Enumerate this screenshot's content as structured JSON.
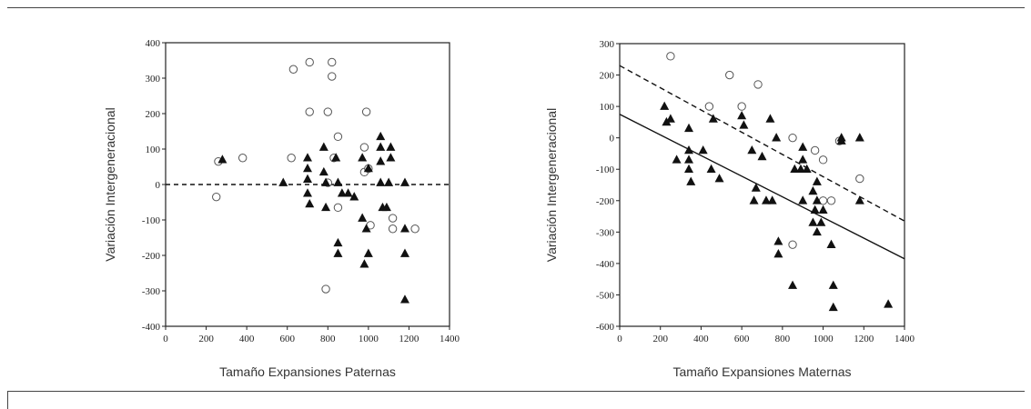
{
  "chart_data": [
    {
      "type": "scatter",
      "title": "",
      "xlabel": "Tamaño Expansiones Paternas",
      "ylabel": "Variación Intergeneracional",
      "xlim": [
        0,
        1400
      ],
      "ylim": [
        -400,
        400
      ],
      "x_ticks": [
        "0",
        "200",
        "400",
        "600",
        "800",
        "1000",
        "1200",
        "1400"
      ],
      "y_ticks": [
        "400",
        "300",
        "200",
        "100",
        "0",
        "-100",
        "-200",
        "-300",
        "-400"
      ],
      "grid": false,
      "legend": "none",
      "reference_lines": [
        {
          "style": "dashed",
          "y": 0
        }
      ],
      "series": [
        {
          "marker": "open-circle",
          "points": [
            [
              250,
              -35
            ],
            [
              260,
              65
            ],
            [
              380,
              75
            ],
            [
              620,
              75
            ],
            [
              630,
              325
            ],
            [
              710,
              345
            ],
            [
              710,
              205
            ],
            [
              800,
              205
            ],
            [
              820,
              345
            ],
            [
              820,
              305
            ],
            [
              800,
              5
            ],
            [
              830,
              75
            ],
            [
              850,
              135
            ],
            [
              850,
              -65
            ],
            [
              790,
              -295
            ],
            [
              990,
              205
            ],
            [
              980,
              105
            ],
            [
              980,
              35
            ],
            [
              1000,
              45
            ],
            [
              1010,
              -115
            ],
            [
              1120,
              -95
            ],
            [
              1120,
              -125
            ],
            [
              1230,
              -125
            ]
          ]
        },
        {
          "marker": "filled-triangle",
          "points": [
            [
              280,
              70
            ],
            [
              580,
              5
            ],
            [
              700,
              75
            ],
            [
              700,
              45
            ],
            [
              700,
              15
            ],
            [
              700,
              -25
            ],
            [
              710,
              -55
            ],
            [
              780,
              105
            ],
            [
              780,
              35
            ],
            [
              790,
              5
            ],
            [
              790,
              -65
            ],
            [
              840,
              75
            ],
            [
              850,
              5
            ],
            [
              870,
              -25
            ],
            [
              900,
              -25
            ],
            [
              930,
              -35
            ],
            [
              850,
              -165
            ],
            [
              850,
              -195
            ],
            [
              970,
              75
            ],
            [
              970,
              -95
            ],
            [
              990,
              -125
            ],
            [
              1000,
              -195
            ],
            [
              1000,
              45
            ],
            [
              1060,
              135
            ],
            [
              1060,
              105
            ],
            [
              1060,
              65
            ],
            [
              1060,
              5
            ],
            [
              1070,
              -65
            ],
            [
              1090,
              -65
            ],
            [
              1100,
              5
            ],
            [
              1110,
              105
            ],
            [
              1110,
              75
            ],
            [
              980,
              -225
            ],
            [
              1180,
              5
            ],
            [
              1180,
              -125
            ],
            [
              1180,
              -195
            ],
            [
              1180,
              -325
            ]
          ]
        }
      ]
    },
    {
      "type": "scatter",
      "title": "",
      "xlabel": "Tamaño Expansiones Maternas",
      "ylabel": "Variación Intergeneracional",
      "xlim": [
        0,
        1400
      ],
      "ylim": [
        -600,
        300
      ],
      "x_ticks": [
        "0",
        "200",
        "400",
        "600",
        "800",
        "1000",
        "1200",
        "1400"
      ],
      "y_ticks": [
        "300",
        "200",
        "100",
        "0",
        "-100",
        "-200",
        "-300",
        "-400",
        "-500",
        "-600"
      ],
      "grid": false,
      "legend": "none",
      "regression_lines": [
        {
          "style": "dashed",
          "x": [
            0,
            1400
          ],
          "y": [
            230,
            -265
          ]
        },
        {
          "style": "solid",
          "x": [
            0,
            1400
          ],
          "y": [
            75,
            -385
          ]
        }
      ],
      "series": [
        {
          "marker": "open-circle",
          "points": [
            [
              250,
              260
            ],
            [
              440,
              100
            ],
            [
              540,
              200
            ],
            [
              600,
              100
            ],
            [
              680,
              170
            ],
            [
              850,
              0
            ],
            [
              850,
              -340
            ],
            [
              960,
              -40
            ],
            [
              1000,
              -70
            ],
            [
              1000,
              -200
            ],
            [
              1040,
              -200
            ],
            [
              1080,
              -10
            ],
            [
              1180,
              -130
            ]
          ]
        },
        {
          "marker": "filled-triangle",
          "points": [
            [
              220,
              100
            ],
            [
              230,
              50
            ],
            [
              250,
              60
            ],
            [
              280,
              -70
            ],
            [
              340,
              30
            ],
            [
              340,
              -40
            ],
            [
              340,
              -70
            ],
            [
              340,
              -100
            ],
            [
              350,
              -140
            ],
            [
              410,
              -40
            ],
            [
              460,
              60
            ],
            [
              450,
              -100
            ],
            [
              490,
              -130
            ],
            [
              600,
              70
            ],
            [
              610,
              40
            ],
            [
              650,
              -40
            ],
            [
              660,
              -200
            ],
            [
              670,
              -160
            ],
            [
              700,
              -60
            ],
            [
              720,
              -200
            ],
            [
              740,
              60
            ],
            [
              750,
              -200
            ],
            [
              770,
              0
            ],
            [
              780,
              -330
            ],
            [
              780,
              -370
            ],
            [
              850,
              -470
            ],
            [
              860,
              -100
            ],
            [
              890,
              -100
            ],
            [
              900,
              -30
            ],
            [
              900,
              -70
            ],
            [
              900,
              -200
            ],
            [
              920,
              -100
            ],
            [
              950,
              -170
            ],
            [
              950,
              -270
            ],
            [
              960,
              -230
            ],
            [
              970,
              -140
            ],
            [
              970,
              -300
            ],
            [
              970,
              -200
            ],
            [
              990,
              -270
            ],
            [
              1000,
              -230
            ],
            [
              1040,
              -340
            ],
            [
              1050,
              -470
            ],
            [
              1050,
              -540
            ],
            [
              1090,
              -10
            ],
            [
              1090,
              0
            ],
            [
              1180,
              0
            ],
            [
              1180,
              -200
            ],
            [
              1320,
              -530
            ]
          ]
        }
      ]
    }
  ]
}
